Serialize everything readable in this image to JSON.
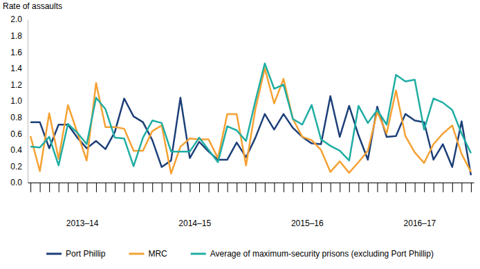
{
  "chart_data": {
    "type": "line",
    "y_label": "Rate of assaults",
    "categories": [
      null,
      null,
      null,
      null,
      null,
      "2013–14",
      null,
      null,
      null,
      null,
      null,
      null,
      null,
      null,
      null,
      null,
      null,
      "2014–15",
      null,
      null,
      null,
      null,
      null,
      null,
      null,
      null,
      null,
      null,
      null,
      "2015–16",
      null,
      null,
      null,
      null,
      null,
      null,
      null,
      null,
      null,
      null,
      null,
      "2016–17",
      null,
      null,
      null,
      null,
      null,
      null
    ],
    "series": [
      {
        "name": "Port Phillip",
        "color": "#1c3f78",
        "values": [
          0.74,
          0.74,
          0.42,
          0.71,
          0.71,
          0.55,
          0.42,
          0.51,
          0.41,
          0.62,
          1.03,
          0.81,
          0.74,
          0.52,
          0.19,
          0.27,
          1.04,
          0.3,
          0.5,
          0.38,
          0.28,
          0.28,
          0.49,
          0.31,
          0.55,
          0.84,
          0.65,
          0.84,
          0.67,
          0.56,
          0.48,
          0.47,
          1.06,
          0.56,
          0.94,
          0.58,
          0.28,
          0.93,
          0.56,
          0.57,
          0.84,
          0.76,
          0.74,
          0.28,
          0.47,
          0.19,
          0.75,
          0.09
        ]
      },
      {
        "name": "MRC",
        "color": "#f5a133",
        "values": [
          0.57,
          0.14,
          0.85,
          0.29,
          0.95,
          0.61,
          0.27,
          1.22,
          0.68,
          0.68,
          0.66,
          0.39,
          0.39,
          0.63,
          0.7,
          0.11,
          0.44,
          0.54,
          0.53,
          0.53,
          0.3,
          0.84,
          0.84,
          0.21,
          0.9,
          1.4,
          0.97,
          1.27,
          0.78,
          0.56,
          0.52,
          0.4,
          0.13,
          0.26,
          0.12,
          0.25,
          0.39,
          0.87,
          0.6,
          1.13,
          0.57,
          0.37,
          0.24,
          0.47,
          0.6,
          0.7,
          0.35,
          0.13
        ]
      },
      {
        "name": "Average of maximum-security prisons (excluding Port Phillip)",
        "color": "#1fada3",
        "values": [
          0.44,
          0.43,
          0.56,
          0.21,
          0.72,
          0.61,
          0.47,
          1.04,
          0.9,
          0.55,
          0.54,
          0.2,
          0.55,
          0.76,
          0.73,
          0.38,
          0.38,
          0.38,
          0.55,
          0.4,
          0.25,
          0.69,
          0.64,
          0.51,
          1.0,
          1.46,
          1.15,
          1.2,
          0.78,
          0.71,
          0.95,
          0.53,
          0.45,
          0.39,
          0.27,
          0.94,
          0.73,
          0.89,
          0.71,
          1.32,
          1.24,
          1.26,
          0.65,
          1.03,
          0.98,
          0.89,
          0.6,
          0.36
        ]
      }
    ],
    "ylim": [
      0,
      2
    ],
    "yticks": [
      {
        "value": 0,
        "label": "0.0"
      },
      {
        "value": 0.2,
        "label": "0.2"
      },
      {
        "value": 0.4,
        "label": "0.4"
      },
      {
        "value": 0.6,
        "label": "0.6"
      },
      {
        "value": 0.8,
        "label": "0.8"
      },
      {
        "value": 1,
        "label": "1.0"
      },
      {
        "value": 1.2,
        "label": "1.2"
      },
      {
        "value": 1.4,
        "label": "1.4"
      },
      {
        "value": 1.6,
        "label": "1.6"
      },
      {
        "value": 1.8,
        "label": "1.8"
      },
      {
        "value": 2,
        "label": "2.0"
      }
    ],
    "grid": false,
    "legend": "bottom"
  }
}
